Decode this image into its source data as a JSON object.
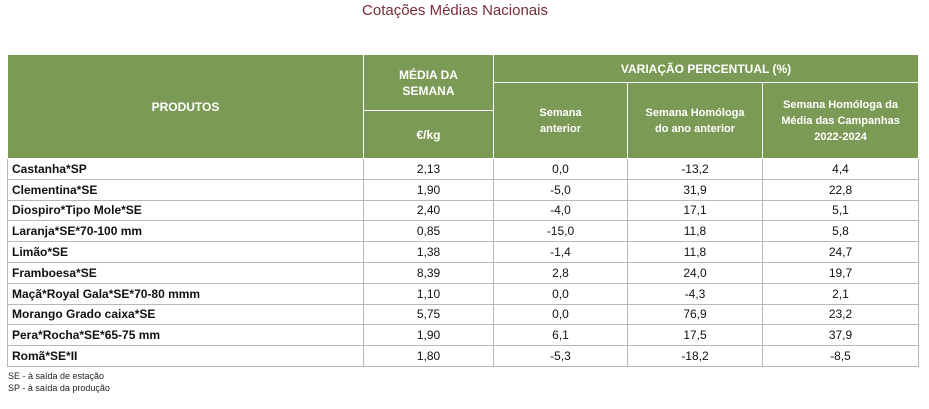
{
  "title": "Cotações Médias Nacionais",
  "header": {
    "products": "PRODUTOS",
    "weekly_mean": "MÉDIA DA SEMANA",
    "unit": "€/kg",
    "variation": "VARIAÇÃO PERCENTUAL (%)",
    "columns": [
      "Semana anterior",
      "Semana Homóloga do ano anterior",
      "Semana Homóloga da Média das Campanhas 2022-2024"
    ]
  },
  "table": {
    "rows": [
      [
        "Castanha*SP",
        "2,13",
        "0,0",
        "-13,2",
        "4,4"
      ],
      [
        "Clementina*SE",
        "1,90",
        "-5,0",
        "31,9",
        "22,8"
      ],
      [
        "Diospiro*Tipo Mole*SE",
        "2,40",
        "-4,0",
        "17,1",
        "5,1"
      ],
      [
        "Laranja*SE*70-100 mm",
        "0,85",
        "-15,0",
        "11,8",
        "5,8"
      ],
      [
        "Limão*SE",
        "1,38",
        "-1,4",
        "11,8",
        "24,7"
      ],
      [
        "Framboesa*SE",
        "8,39",
        "2,8",
        "24,0",
        "19,7"
      ],
      [
        "Maçã*Royal Gala*SE*70-80 mmm",
        "1,10",
        "0,0",
        "-4,3",
        "2,1"
      ],
      [
        "Morango Grado caixa*SE",
        "5,75",
        "0,0",
        "76,9",
        "23,2"
      ],
      [
        "Pera*Rocha*SE*65-75 mm",
        "1,90",
        "6,1",
        "17,5",
        "37,9"
      ],
      [
        "Romã*SE*II",
        "1,80",
        "-5,3",
        "-18,2",
        "-8,5"
      ]
    ]
  },
  "notes": [
    "SE - à saída de estação",
    "SP - à saída da produção"
  ]
}
